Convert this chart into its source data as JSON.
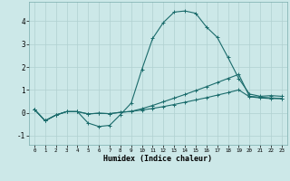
{
  "title": "",
  "xlabel": "Humidex (Indice chaleur)",
  "ylabel": "",
  "bg_color": "#cce8e8",
  "grid_color": "#b0d0d0",
  "line_color": "#1a6b6b",
  "xlim": [
    -0.5,
    23.5
  ],
  "ylim": [
    -1.4,
    4.85
  ],
  "xticks": [
    0,
    1,
    2,
    3,
    4,
    5,
    6,
    7,
    8,
    9,
    10,
    11,
    12,
    13,
    14,
    15,
    16,
    17,
    18,
    19,
    20,
    21,
    22,
    23
  ],
  "yticks": [
    -1,
    0,
    1,
    2,
    3,
    4
  ],
  "line1_x": [
    0,
    1,
    2,
    3,
    4,
    5,
    6,
    7,
    8,
    9,
    10,
    11,
    12,
    13,
    14,
    15,
    16,
    17,
    18,
    19,
    20,
    21,
    22,
    23
  ],
  "line1_y": [
    0.15,
    -0.35,
    -0.1,
    0.05,
    0.05,
    -0.45,
    -0.6,
    -0.55,
    -0.08,
    0.42,
    1.9,
    3.25,
    3.95,
    4.4,
    4.45,
    4.35,
    3.75,
    3.3,
    2.42,
    1.5,
    0.82,
    0.72,
    0.75,
    0.72
  ],
  "line2_x": [
    0,
    1,
    2,
    3,
    4,
    5,
    6,
    7,
    8,
    9,
    10,
    11,
    12,
    13,
    14,
    15,
    16,
    17,
    18,
    19,
    20,
    21,
    22,
    23
  ],
  "line2_y": [
    0.15,
    -0.35,
    -0.1,
    0.05,
    0.05,
    -0.05,
    -0.02,
    -0.04,
    0.02,
    0.06,
    0.12,
    0.19,
    0.27,
    0.36,
    0.46,
    0.56,
    0.66,
    0.77,
    0.88,
    1.0,
    0.7,
    0.65,
    0.62,
    0.62
  ],
  "line3_x": [
    0,
    1,
    2,
    3,
    4,
    5,
    6,
    7,
    8,
    9,
    10,
    11,
    12,
    13,
    14,
    15,
    16,
    17,
    18,
    19,
    20,
    21,
    22,
    23
  ],
  "line3_y": [
    0.15,
    -0.35,
    -0.1,
    0.05,
    0.05,
    -0.05,
    -0.02,
    -0.04,
    0.02,
    0.06,
    0.18,
    0.32,
    0.48,
    0.64,
    0.8,
    0.97,
    1.14,
    1.32,
    1.5,
    1.68,
    0.72,
    0.68,
    0.65,
    0.62
  ]
}
